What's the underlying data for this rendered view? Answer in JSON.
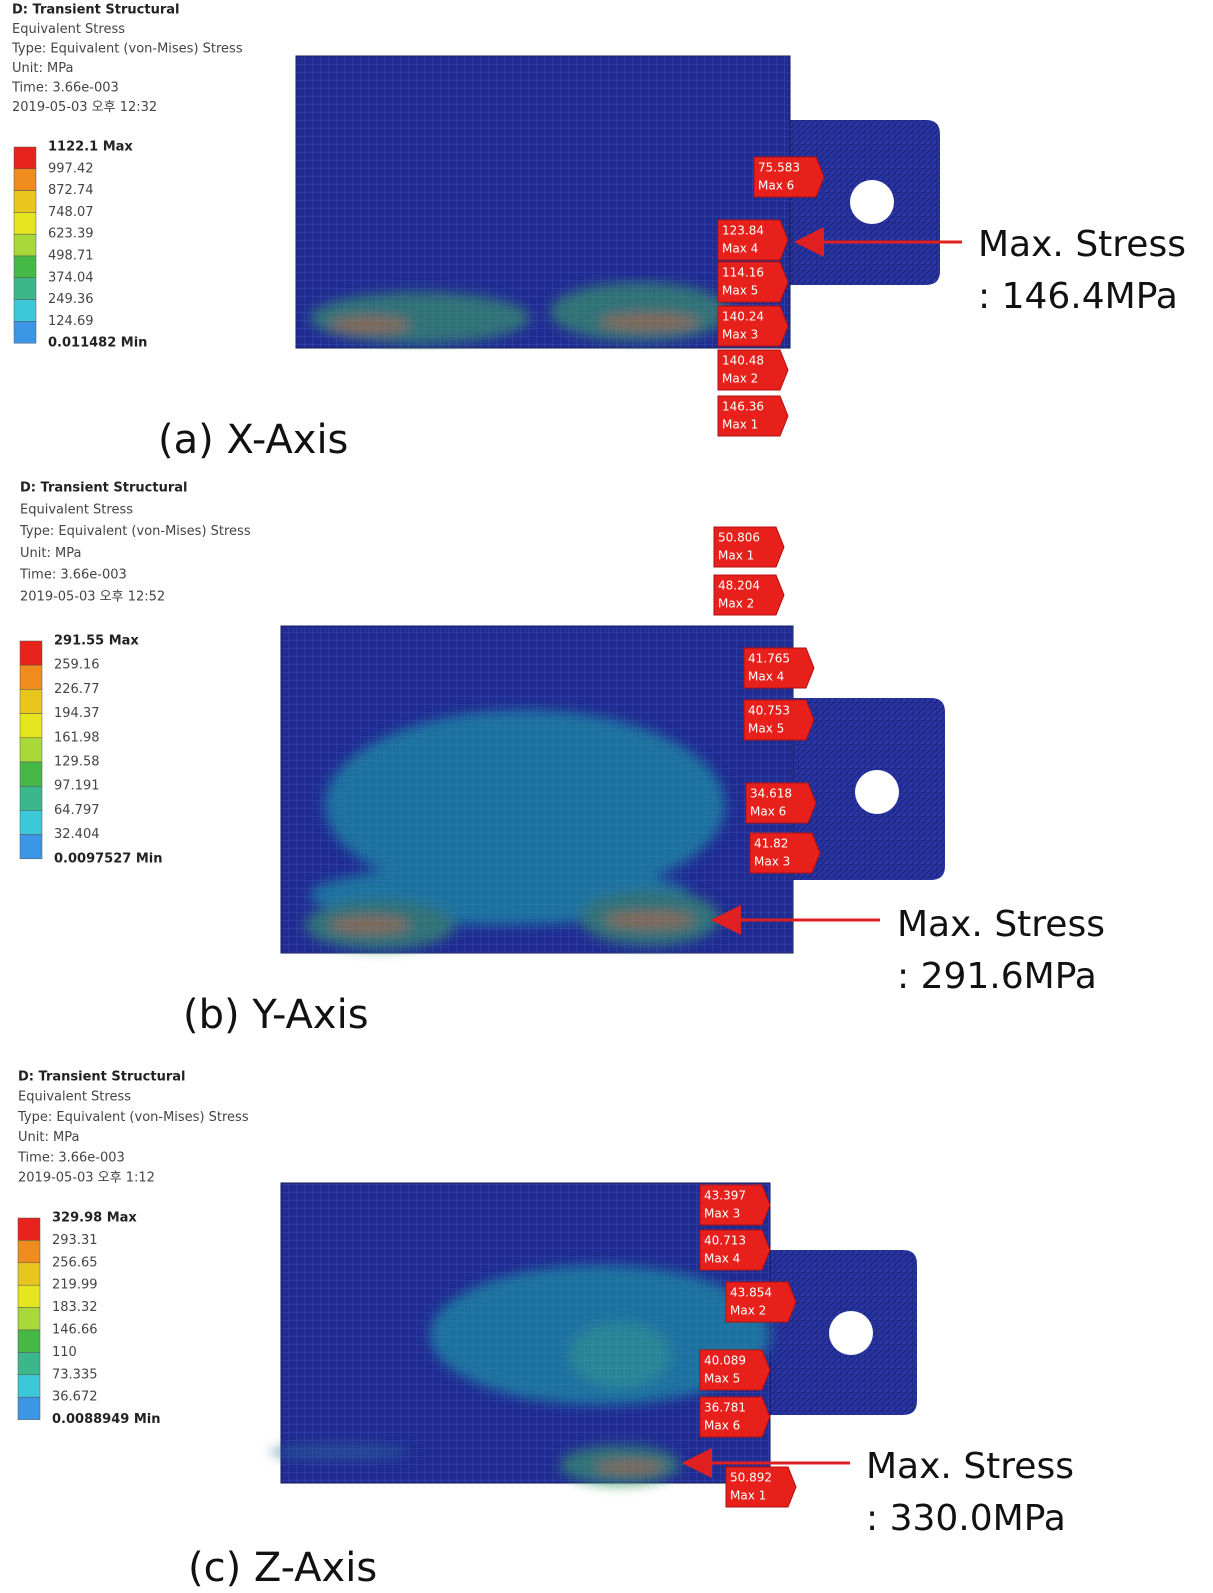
{
  "panels": [
    {
      "header": [
        "D: Transient Structural",
        "Equivalent Stress",
        "Type: Equivalent (von-Mises) Stress",
        "Unit: MPa",
        "Time: 3.66e-003",
        "2019-05-03 오후 12:32"
      ],
      "legend": [
        "1122.1 Max",
        "997.42",
        "872.74",
        "748.07",
        "623.39",
        "498.71",
        "374.04",
        "249.36",
        "124.69",
        "0.011482 Min"
      ],
      "tags": [
        {
          "value": "75.583",
          "label": "Max 6"
        },
        {
          "value": "123.84",
          "label": "Max 4"
        },
        {
          "value": "114.16",
          "label": "Max 5"
        },
        {
          "value": "140.24",
          "label": "Max 3"
        },
        {
          "value": "140.48",
          "label": "Max 2"
        },
        {
          "value": "146.36",
          "label": "Max 1"
        }
      ],
      "annotation": [
        "Max. Stress",
        ": 146.4MPa"
      ],
      "caption": "(a) X-Axis"
    },
    {
      "header": [
        "D: Transient Structural",
        "Equivalent Stress",
        "Type: Equivalent (von-Mises) Stress",
        "Unit: MPa",
        "Time: 3.66e-003",
        "2019-05-03 오후 12:52"
      ],
      "legend": [
        "291.55 Max",
        "259.16",
        "226.77",
        "194.37",
        "161.98",
        "129.58",
        "97.191",
        "64.797",
        "32.404",
        "0.0097527 Min"
      ],
      "tags": [
        {
          "value": "50.806",
          "label": "Max 1"
        },
        {
          "value": "48.204",
          "label": "Max 2"
        },
        {
          "value": "41.765",
          "label": "Max 4"
        },
        {
          "value": "40.753",
          "label": "Max 5"
        },
        {
          "value": "34.618",
          "label": "Max 6"
        },
        {
          "value": "41.82",
          "label": "Max 3"
        }
      ],
      "annotation": [
        "Max. Stress",
        ": 291.6MPa"
      ],
      "caption": "(b) Y-Axis"
    },
    {
      "header": [
        "D: Transient Structural",
        "Equivalent Stress",
        "Type: Equivalent (von-Mises) Stress",
        "Unit: MPa",
        "Time: 3.66e-003",
        "2019-05-03 오후 1:12"
      ],
      "legend": [
        "329.98 Max",
        "293.31",
        "256.65",
        "219.99",
        "183.32",
        "146.66",
        "110",
        "73.335",
        "36.672",
        "0.0088949 Min"
      ],
      "tags": [
        {
          "value": "43.397",
          "label": "Max 3"
        },
        {
          "value": "40.713",
          "label": "Max 4"
        },
        {
          "value": "43.854",
          "label": "Max 2"
        },
        {
          "value": "40.089",
          "label": "Max 5"
        },
        {
          "value": "36.781",
          "label": "Max 6"
        },
        {
          "value": "50.892",
          "label": "Max 1"
        }
      ],
      "annotation": [
        "Max. Stress",
        ": 330.0MPa"
      ],
      "caption": "(c) Z-Axis"
    }
  ]
}
